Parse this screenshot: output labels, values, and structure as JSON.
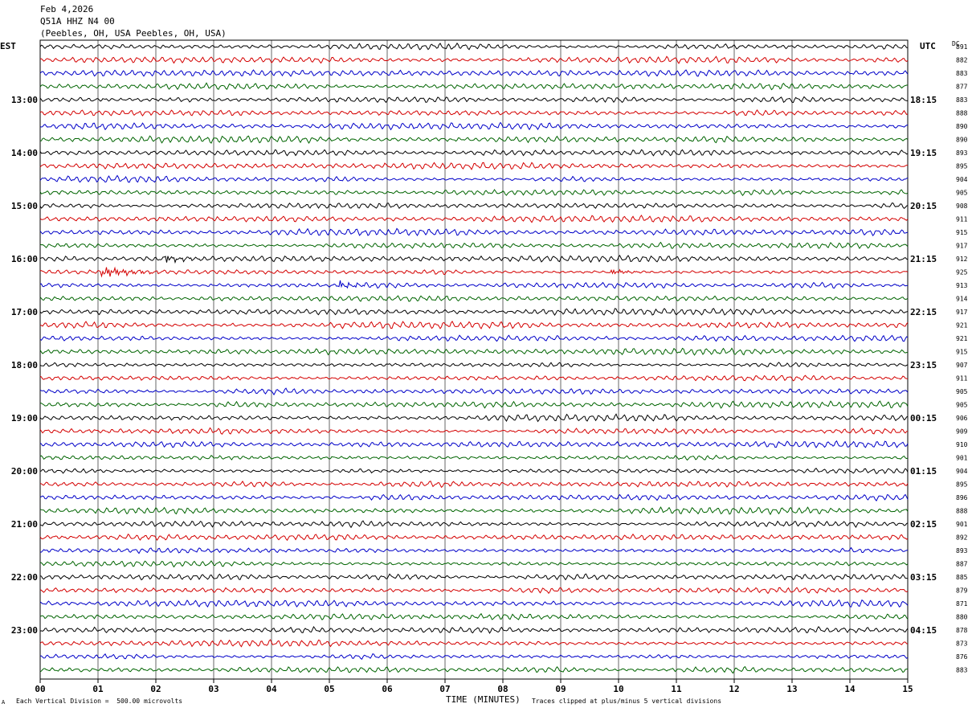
{
  "header": {
    "date": "Feb 4,2026",
    "station": "Q51A HHZ N4 00",
    "location": "(Peebles, OH, USA Peebles, OH, USA)"
  },
  "footer": {
    "scale_note": "Each Vertical Division =  500.00 microvolts",
    "clip_note": "Traces clipped at plus/minus 5 vertical divisions",
    "corner_mark": "A"
  },
  "chart_data": {
    "type": "line",
    "title": "",
    "xlabel": "TIME (MINUTES)",
    "x_ticks": [
      "00",
      "01",
      "02",
      "03",
      "04",
      "05",
      "06",
      "07",
      "08",
      "09",
      "10",
      "11",
      "12",
      "13",
      "14",
      "15"
    ],
    "xlim": [
      0,
      15
    ],
    "left_axis_label": "EST",
    "right_axis_label": "UTC",
    "dc_label": "DC",
    "left_time_labels": [
      "13:00",
      "14:00",
      "15:00",
      "16:00",
      "17:00",
      "18:00",
      "19:00",
      "20:00",
      "21:00",
      "22:00",
      "23:00"
    ],
    "right_time_labels": [
      "18:15",
      "19:15",
      "20:15",
      "21:15",
      "22:15",
      "23:15",
      "00:15",
      "01:15",
      "02:15",
      "03:15",
      "04:15"
    ],
    "trace_colors": [
      "#000000",
      "#d40000",
      "#0000c8",
      "#006400"
    ],
    "dc_values": [
      "891",
      "882",
      "883",
      "877",
      "883",
      "888",
      "890",
      "890",
      "893",
      "895",
      "904",
      "905",
      "908",
      "911",
      "915",
      "917",
      "912",
      "925",
      "913",
      "914",
      "917",
      "921",
      "921",
      "915",
      "907",
      "911",
      "905",
      "905",
      "906",
      "909",
      "910",
      "901",
      "904",
      "895",
      "896",
      "888",
      "901",
      "892",
      "893",
      "887",
      "885",
      "879",
      "871",
      "880",
      "878",
      "873",
      "876",
      "883"
    ],
    "events": [
      {
        "trace": 17,
        "minute": 1.1,
        "amplitude": "large"
      },
      {
        "trace": 16,
        "minute": 2.2,
        "amplitude": "medium"
      },
      {
        "trace": 18,
        "minute": 5.2,
        "amplitude": "medium"
      },
      {
        "trace": 17,
        "minute": 9.9,
        "amplitude": "small"
      }
    ]
  }
}
